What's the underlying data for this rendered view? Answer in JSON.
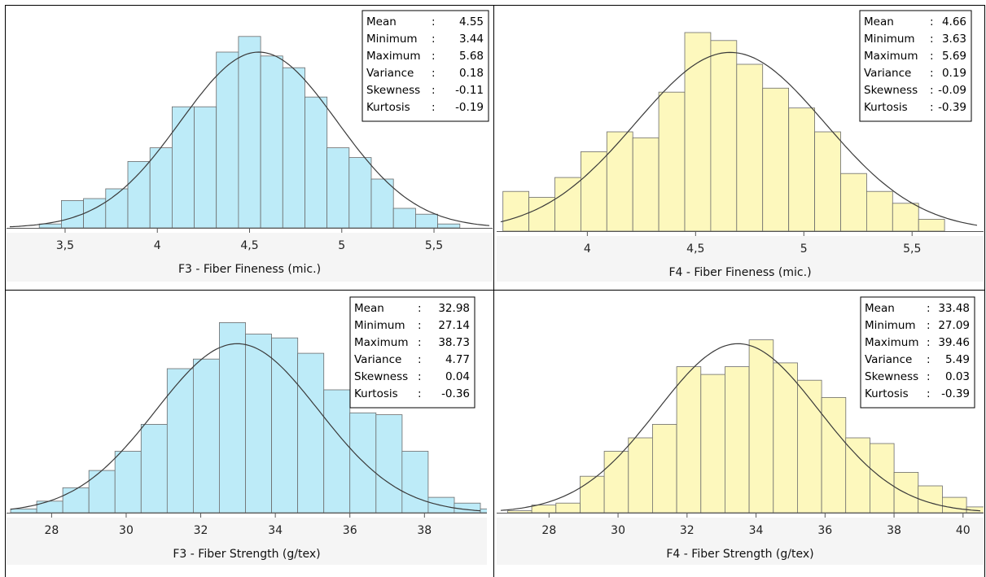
{
  "colors": {
    "blue_fill": "#bdebf8",
    "yellow_fill": "#fdf8bd",
    "bar_stroke": "#6b6b6b",
    "curve": "#3a3a3a",
    "panel_bg": "#f5f5f5"
  },
  "chart_data": [
    {
      "type": "bar",
      "xlabel": "F3 - Fiber Fineness (mic.)",
      "fill_color": "#bdebf8",
      "xlim": [
        3.2,
        5.8
      ],
      "ymax": 1.0,
      "xticks": [
        3.5,
        4,
        4.5,
        5,
        5.5
      ],
      "tick_labels": [
        "3,5",
        "4",
        "4,5",
        "5",
        "5,5"
      ],
      "bin_start": 3.36,
      "bin_width": 0.12,
      "values": [
        0.02,
        0.14,
        0.15,
        0.2,
        0.34,
        0.41,
        0.62,
        0.62,
        0.9,
        0.98,
        0.88,
        0.82,
        0.67,
        0.41,
        0.36,
        0.25,
        0.1,
        0.07,
        0.02
      ],
      "curve": {
        "mean": 4.55,
        "sd": 0.424,
        "peak": 0.9
      },
      "stats": [
        {
          "label": "Mean",
          "value": "4.55"
        },
        {
          "label": "Minimum",
          "value": "3.44"
        },
        {
          "label": "Maximum",
          "value": "5.68"
        },
        {
          "label": "Variance",
          "value": "0.18"
        },
        {
          "label": "Skewness",
          "value": "-0.11"
        },
        {
          "label": "Kurtosis",
          "value": "-0.19"
        }
      ]
    },
    {
      "type": "bar",
      "xlabel": "F4 - Fiber Fineness (mic.)",
      "fill_color": "#fdf8bd",
      "xlim": [
        3.6,
        5.8
      ],
      "ymax": 1.0,
      "xticks": [
        4,
        4.5,
        5,
        5.5
      ],
      "tick_labels": [
        "4",
        "4,5",
        "5",
        "5,5"
      ],
      "bin_start": 3.61,
      "bin_width": 0.12,
      "values": [
        0.2,
        0.17,
        0.27,
        0.4,
        0.5,
        0.47,
        0.7,
        1.0,
        0.96,
        0.84,
        0.72,
        0.62,
        0.5,
        0.29,
        0.2,
        0.14,
        0.06
      ],
      "curve": {
        "mean": 4.66,
        "sd": 0.436,
        "peak": 0.9
      },
      "stats": [
        {
          "label": "Mean",
          "value": "4.66"
        },
        {
          "label": "Minimum",
          "value": "3.63"
        },
        {
          "label": "Maximum",
          "value": "5.69"
        },
        {
          "label": "Variance",
          "value": "0.19"
        },
        {
          "label": "Skewness",
          "value": "-0.09"
        },
        {
          "label": "Kurtosis",
          "value": "-0.39"
        }
      ]
    },
    {
      "type": "bar",
      "xlabel": "F3 - Fiber Strength (g/tex)",
      "fill_color": "#bdebf8",
      "xlim": [
        26.9,
        39.5
      ],
      "ymax": 1.0,
      "xticks": [
        28,
        30,
        32,
        34,
        36,
        38
      ],
      "tick_labels": [
        "28",
        "30",
        "32",
        "34",
        "36",
        "38"
      ],
      "bin_start": 26.9,
      "bin_width": 0.7,
      "values": [
        0.02,
        0.06,
        0.13,
        0.22,
        0.32,
        0.46,
        0.75,
        0.8,
        0.99,
        0.93,
        0.91,
        0.83,
        0.64,
        0.52,
        0.51,
        0.32,
        0.08,
        0.05,
        0.02
      ],
      "curve": {
        "mean": 32.98,
        "sd": 2.18,
        "peak": 0.88
      },
      "stats": [
        {
          "label": "Mean",
          "value": "32.98"
        },
        {
          "label": "Minimum",
          "value": "27.14"
        },
        {
          "label": "Maximum",
          "value": "38.73"
        },
        {
          "label": "Variance",
          "value": "4.77"
        },
        {
          "label": "Skewness",
          "value": "0.04"
        },
        {
          "label": "Kurtosis",
          "value": "-0.36"
        }
      ]
    },
    {
      "type": "bar",
      "xlabel": "F4 - Fiber Strength (g/tex)",
      "fill_color": "#fdf8bd",
      "xlim": [
        26.6,
        40.5
      ],
      "ymax": 1.0,
      "xticks": [
        28,
        30,
        32,
        34,
        36,
        38,
        40
      ],
      "tick_labels": [
        "28",
        "30",
        "32",
        "34",
        "36",
        "38",
        "40"
      ],
      "bin_start": 26.8,
      "bin_width": 0.7,
      "values": [
        0.01,
        0.04,
        0.05,
        0.19,
        0.32,
        0.39,
        0.46,
        0.76,
        0.72,
        0.76,
        0.9,
        0.78,
        0.69,
        0.6,
        0.39,
        0.36,
        0.21,
        0.14,
        0.08,
        0.03
      ],
      "curve": {
        "mean": 33.48,
        "sd": 2.34,
        "peak": 0.88
      },
      "stats": [
        {
          "label": "Mean",
          "value": "33.48"
        },
        {
          "label": "Minimum",
          "value": "27.09"
        },
        {
          "label": "Maximum",
          "value": "39.46"
        },
        {
          "label": "Variance",
          "value": "5.49"
        },
        {
          "label": "Skewness",
          "value": "0.03"
        },
        {
          "label": "Kurtosis",
          "value": "-0.39"
        }
      ]
    }
  ]
}
